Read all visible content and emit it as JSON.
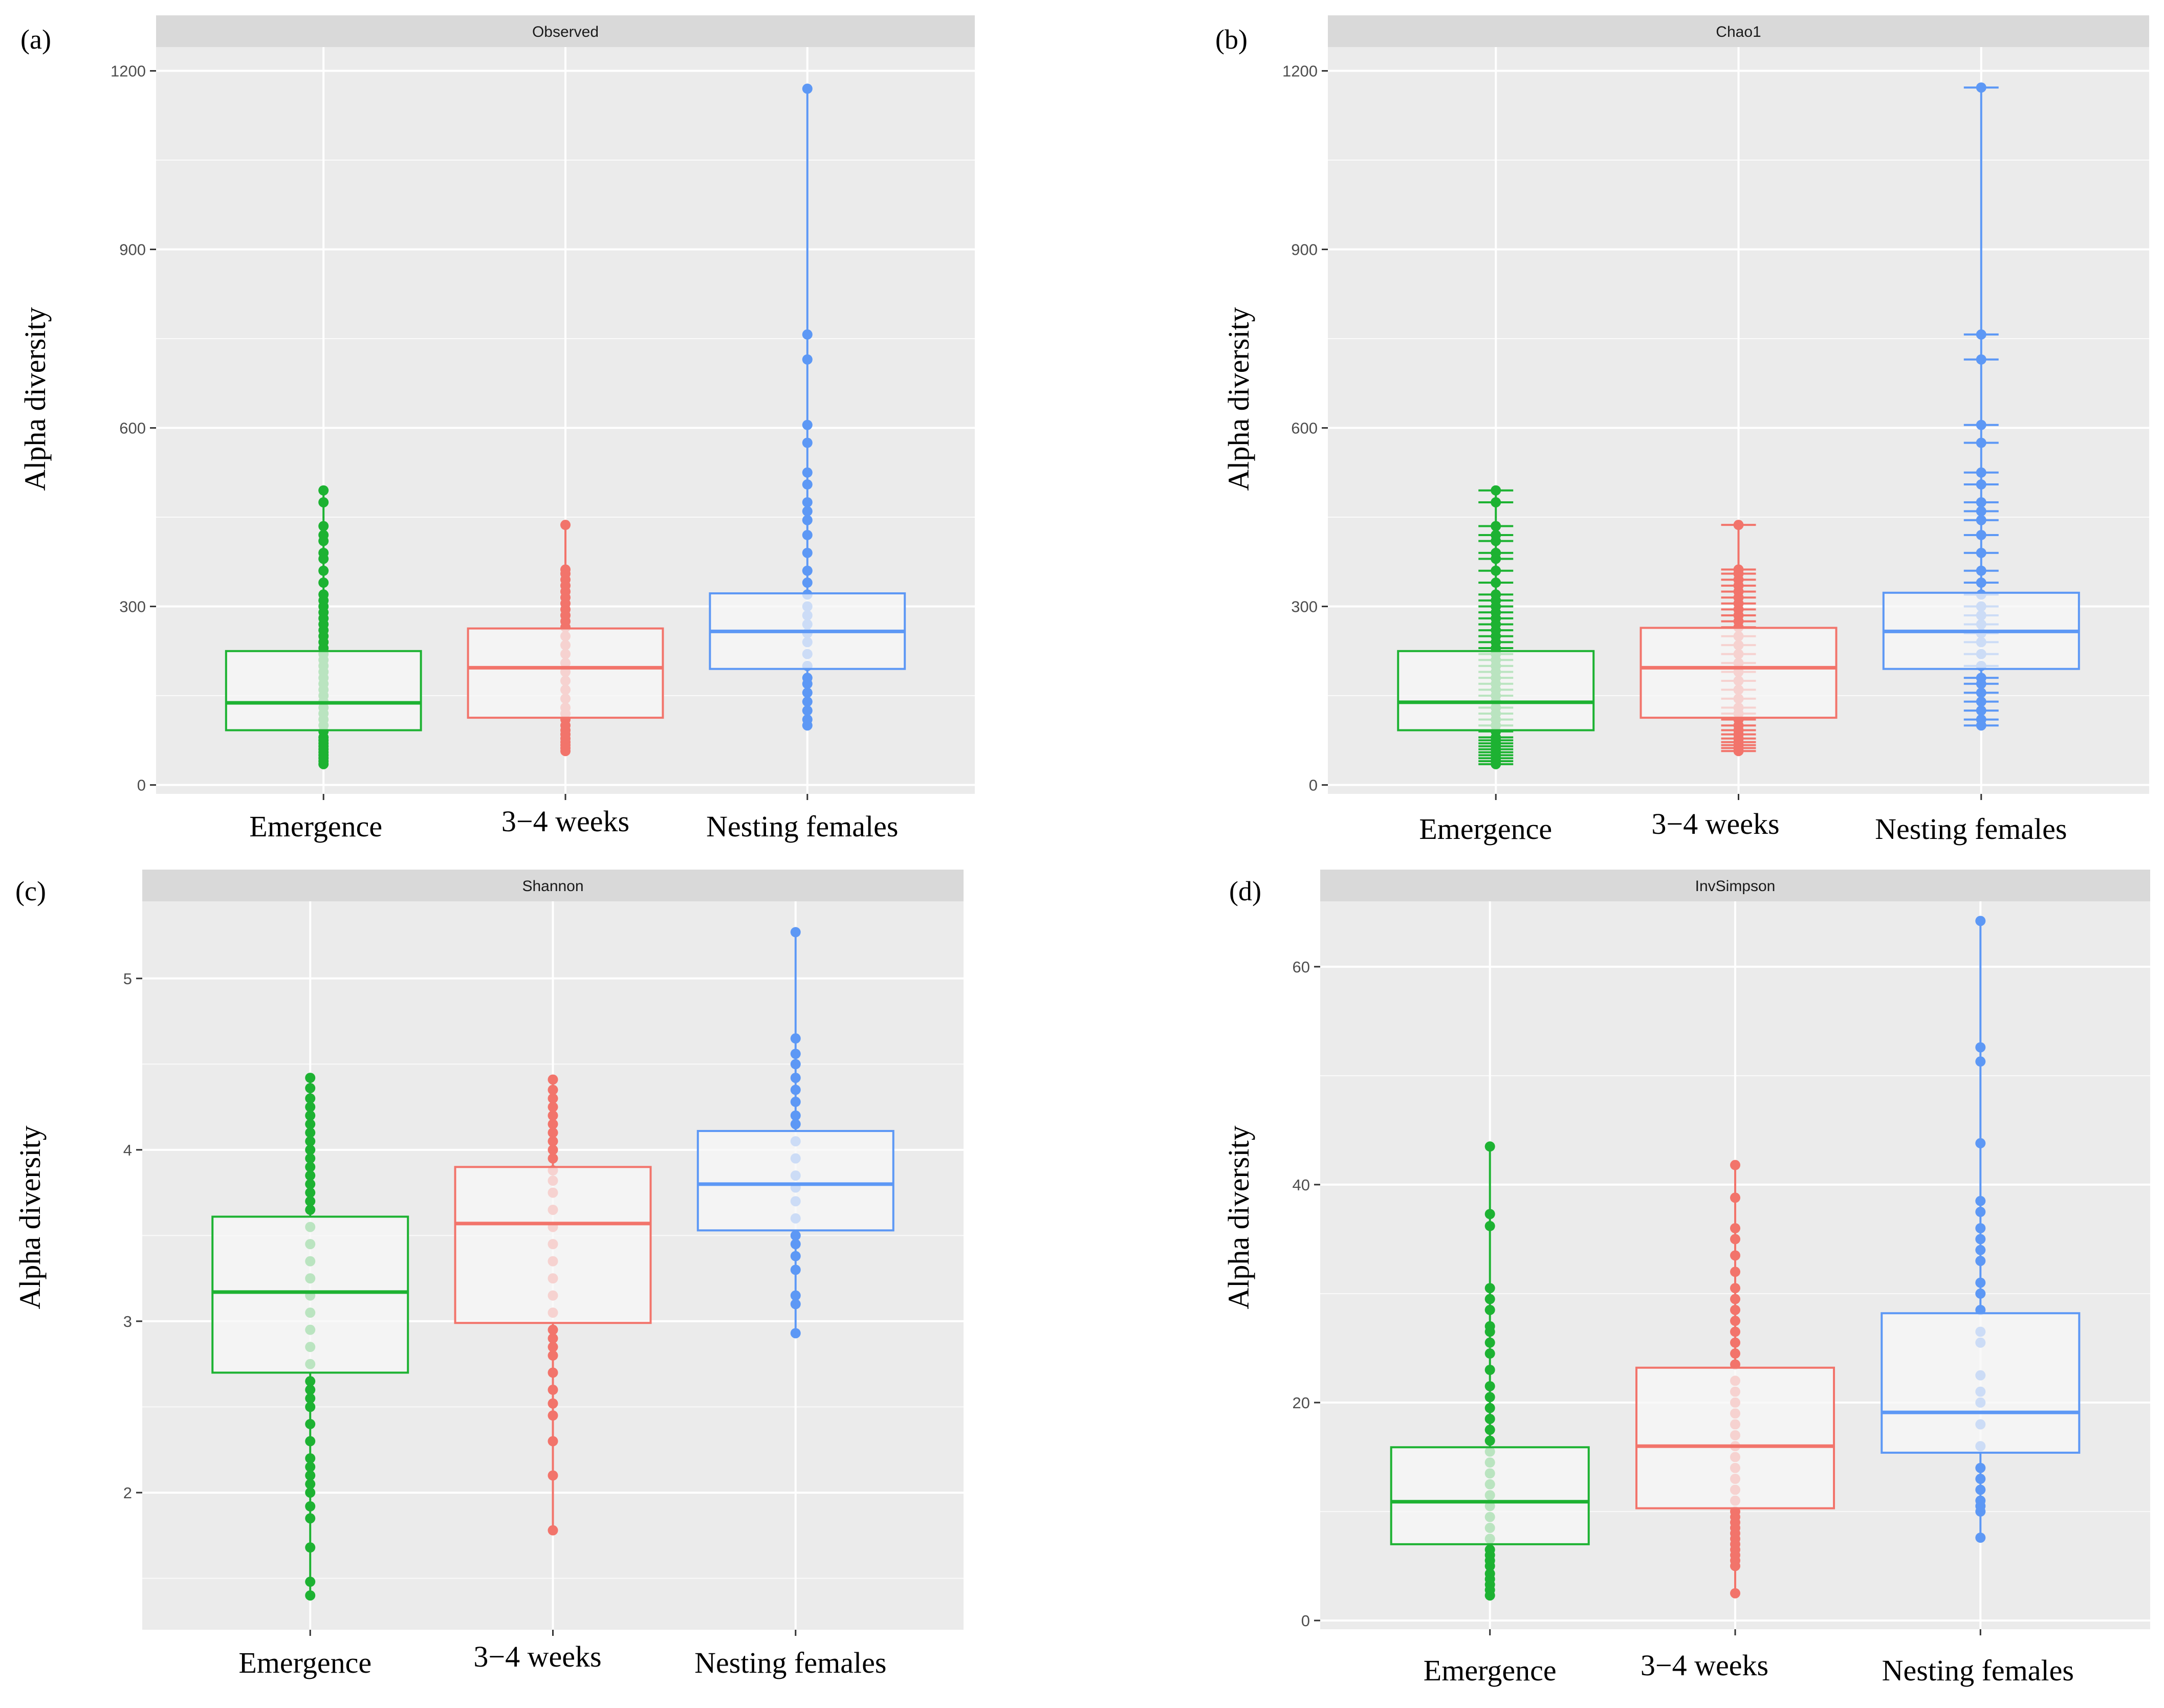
{
  "figure": {
    "colors": {
      "Emergence": "#1db232",
      "3-4 weeks": "#f2746b",
      "Nesting females": "#5d98f5",
      "panel_bg": "#ebebeb",
      "strip_bg": "#d9d9d9",
      "grid": "#ffffff",
      "box_fill": "#f7f7f7"
    }
  },
  "chart_data": [
    {
      "panel_label": "(a)",
      "type": "box",
      "title": "Observed",
      "ylabel": "Alpha diversity",
      "xlabel": "",
      "categories": [
        "Emergence",
        "3−4 weeks",
        "Nesting females"
      ],
      "ylim": [
        -15,
        1240
      ],
      "yticks": [
        0,
        300,
        600,
        900,
        1200
      ],
      "ytick_labels": [
        "0",
        "300",
        "600",
        "900",
        "1200"
      ],
      "grid": true,
      "boxes": [
        {
          "group": "Emergence",
          "q1": 92,
          "median": 138,
          "q3": 225,
          "whisker_low": 35,
          "whisker_high": 495,
          "points": [
            35,
            40,
            45,
            50,
            55,
            60,
            65,
            70,
            75,
            80,
            90,
            100,
            110,
            120,
            130,
            140,
            150,
            160,
            170,
            180,
            190,
            200,
            210,
            220,
            230,
            240,
            250,
            260,
            270,
            280,
            290,
            300,
            310,
            320,
            340,
            360,
            380,
            390,
            410,
            420,
            435,
            475,
            495
          ]
        },
        {
          "group": "3−4 weeks",
          "q1": 113,
          "median": 197,
          "q3": 263,
          "whisker_low": 57,
          "whisker_high": 437,
          "points": [
            57,
            62,
            67,
            72,
            78,
            85,
            92,
            100,
            110,
            120,
            130,
            145,
            160,
            175,
            190,
            205,
            220,
            235,
            250,
            265,
            275,
            285,
            295,
            305,
            315,
            325,
            335,
            345,
            355,
            362,
            437
          ]
        },
        {
          "group": "Nesting females",
          "q1": 195,
          "median": 258,
          "q3": 322,
          "whisker_low": 100,
          "whisker_high": 1170,
          "points": [
            100,
            110,
            125,
            140,
            155,
            170,
            180,
            200,
            220,
            240,
            255,
            270,
            285,
            300,
            320,
            340,
            360,
            390,
            420,
            445,
            460,
            475,
            505,
            525,
            575,
            605,
            715,
            757,
            1170
          ]
        }
      ]
    },
    {
      "panel_label": "(b)",
      "type": "box",
      "title": "Chao1",
      "ylabel": "Alpha diversity",
      "xlabel": "",
      "categories": [
        "Emergence",
        "3−4 weeks",
        "Nesting females"
      ],
      "ylim": [
        -15,
        1240
      ],
      "yticks": [
        0,
        300,
        600,
        900,
        1200
      ],
      "ytick_labels": [
        "0",
        "300",
        "600",
        "900",
        "1200"
      ],
      "grid": true,
      "boxes": [
        {
          "group": "Emergence",
          "q1": 92,
          "median": 139,
          "q3": 225,
          "whisker_low": 35,
          "whisker_high": 495,
          "points": [
            35,
            40,
            45,
            50,
            55,
            60,
            65,
            70,
            75,
            80,
            90,
            100,
            110,
            120,
            130,
            140,
            150,
            160,
            170,
            180,
            190,
            200,
            210,
            220,
            230,
            240,
            250,
            260,
            270,
            280,
            290,
            300,
            310,
            320,
            340,
            360,
            380,
            390,
            410,
            420,
            435,
            475,
            495
          ]
        },
        {
          "group": "3−4 weeks",
          "q1": 113,
          "median": 197,
          "q3": 264,
          "whisker_low": 57,
          "whisker_high": 437,
          "points": [
            57,
            62,
            67,
            72,
            78,
            85,
            92,
            100,
            110,
            120,
            130,
            145,
            160,
            175,
            190,
            205,
            220,
            235,
            250,
            265,
            275,
            285,
            295,
            305,
            315,
            325,
            335,
            345,
            355,
            362,
            437
          ]
        },
        {
          "group": "Nesting females",
          "q1": 195,
          "median": 258,
          "q3": 323,
          "whisker_low": 100,
          "whisker_high": 1172,
          "points": [
            100,
            110,
            125,
            140,
            155,
            170,
            180,
            200,
            220,
            240,
            255,
            270,
            285,
            300,
            320,
            340,
            360,
            390,
            420,
            445,
            460,
            475,
            505,
            525,
            575,
            605,
            715,
            757,
            1172
          ]
        }
      ]
    },
    {
      "panel_label": "(c)",
      "type": "box",
      "title": "Shannon",
      "ylabel": "Alpha diversity",
      "xlabel": "",
      "categories": [
        "Emergence",
        "3−4 weeks",
        "Nesting females"
      ],
      "ylim": [
        1.2,
        5.45
      ],
      "yticks": [
        2,
        3,
        4,
        5
      ],
      "ytick_labels": [
        "2",
        "3",
        "4",
        "5"
      ],
      "grid": true,
      "boxes": [
        {
          "group": "Emergence",
          "q1": 2.7,
          "median": 3.17,
          "q3": 3.61,
          "whisker_low": 1.4,
          "whisker_high": 4.42,
          "points": [
            1.4,
            1.48,
            1.68,
            1.85,
            1.92,
            2.0,
            2.05,
            2.1,
            2.15,
            2.2,
            2.3,
            2.4,
            2.5,
            2.55,
            2.6,
            2.65,
            2.75,
            2.85,
            2.95,
            3.05,
            3.15,
            3.25,
            3.35,
            3.45,
            3.55,
            3.65,
            3.7,
            3.75,
            3.8,
            3.85,
            3.9,
            3.95,
            4.0,
            4.05,
            4.1,
            4.15,
            4.2,
            4.25,
            4.3,
            4.36,
            4.42
          ]
        },
        {
          "group": "3−4 weeks",
          "q1": 2.99,
          "median": 3.57,
          "q3": 3.9,
          "whisker_low": 1.78,
          "whisker_high": 4.41,
          "points": [
            1.78,
            2.1,
            2.3,
            2.45,
            2.52,
            2.6,
            2.7,
            2.8,
            2.85,
            2.9,
            2.95,
            3.05,
            3.15,
            3.25,
            3.35,
            3.45,
            3.55,
            3.65,
            3.75,
            3.82,
            3.88,
            3.95,
            4.0,
            4.05,
            4.1,
            4.15,
            4.2,
            4.25,
            4.3,
            4.35,
            4.41
          ]
        },
        {
          "group": "Nesting females",
          "q1": 3.53,
          "median": 3.8,
          "q3": 4.11,
          "whisker_low": 2.93,
          "whisker_high": 5.27,
          "points": [
            2.93,
            3.1,
            3.15,
            3.3,
            3.38,
            3.45,
            3.5,
            3.6,
            3.7,
            3.78,
            3.85,
            3.95,
            4.05,
            4.15,
            4.2,
            4.28,
            4.35,
            4.42,
            4.5,
            4.56,
            4.65,
            5.27
          ]
        }
      ]
    },
    {
      "panel_label": "(d)",
      "type": "box",
      "title": "InvSimpson",
      "ylabel": "Alpha diversity",
      "xlabel": "",
      "categories": [
        "Emergence",
        "3−4 weeks",
        "Nesting females"
      ],
      "ylim": [
        -0.8,
        66
      ],
      "yticks": [
        0,
        20,
        40,
        60
      ],
      "ytick_labels": [
        "0",
        "20",
        "40",
        "60"
      ],
      "grid": true,
      "boxes": [
        {
          "group": "Emergence",
          "q1": 7,
          "median": 10.9,
          "q3": 15.9,
          "whisker_low": 2.3,
          "whisker_high": 43.5,
          "points": [
            2.3,
            2.8,
            3.3,
            3.8,
            4.3,
            5,
            5.5,
            6,
            6.5,
            7.5,
            8.5,
            9.5,
            10.5,
            11.5,
            12.5,
            13.5,
            14.5,
            15.5,
            16.5,
            17.5,
            18.5,
            19.5,
            20.5,
            21.5,
            23,
            24.5,
            25.5,
            26.5,
            27,
            28.5,
            29.5,
            30.5,
            36.2,
            37.3,
            43.5
          ]
        },
        {
          "group": "3−4 weeks",
          "q1": 10.3,
          "median": 16,
          "q3": 23.2,
          "whisker_low": 2.5,
          "whisker_high": 41.8,
          "points": [
            2.5,
            5,
            5.5,
            6,
            6.5,
            7,
            7.5,
            8,
            8.5,
            9,
            9.5,
            10,
            11,
            12,
            13,
            14,
            15,
            16,
            17,
            18,
            19,
            20,
            21,
            22,
            23.5,
            24.5,
            25.5,
            26.5,
            27.5,
            28.5,
            29.5,
            30.5,
            32,
            33.5,
            35,
            36,
            38.8,
            41.8
          ]
        },
        {
          "group": "Nesting females",
          "q1": 15.4,
          "median": 19.1,
          "q3": 28.2,
          "whisker_low": 7.6,
          "whisker_high": 64.2,
          "points": [
            7.6,
            10,
            10.5,
            11,
            12,
            13,
            14,
            16,
            18,
            20,
            21,
            22.5,
            25.5,
            26.5,
            28.5,
            30,
            31,
            33,
            34,
            35,
            36,
            37.5,
            38.5,
            43.8,
            51.3,
            52.6,
            64.2
          ]
        }
      ]
    }
  ]
}
